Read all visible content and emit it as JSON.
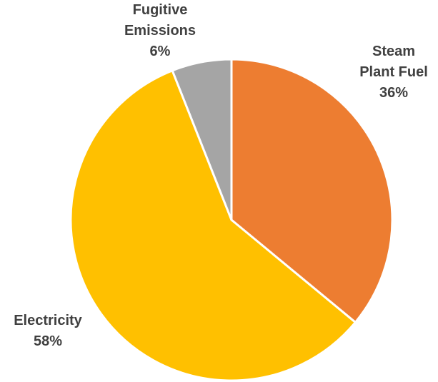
{
  "chart_data": {
    "type": "pie",
    "title": "",
    "start_angle_deg": 0,
    "direction": "clockwise",
    "slices": [
      {
        "label_lines": [
          "Steam",
          "Plant Fuel"
        ],
        "value": 36,
        "value_label": "36%",
        "color": "#ED7D31"
      },
      {
        "label_lines": [
          "Electricity"
        ],
        "value": 58,
        "value_label": "58%",
        "color": "#FFC000"
      },
      {
        "label_lines": [
          "Fugitive",
          "Emissions"
        ],
        "value": 6,
        "value_label": "6%",
        "color": "#A5A5A5"
      }
    ],
    "legend": "none"
  }
}
